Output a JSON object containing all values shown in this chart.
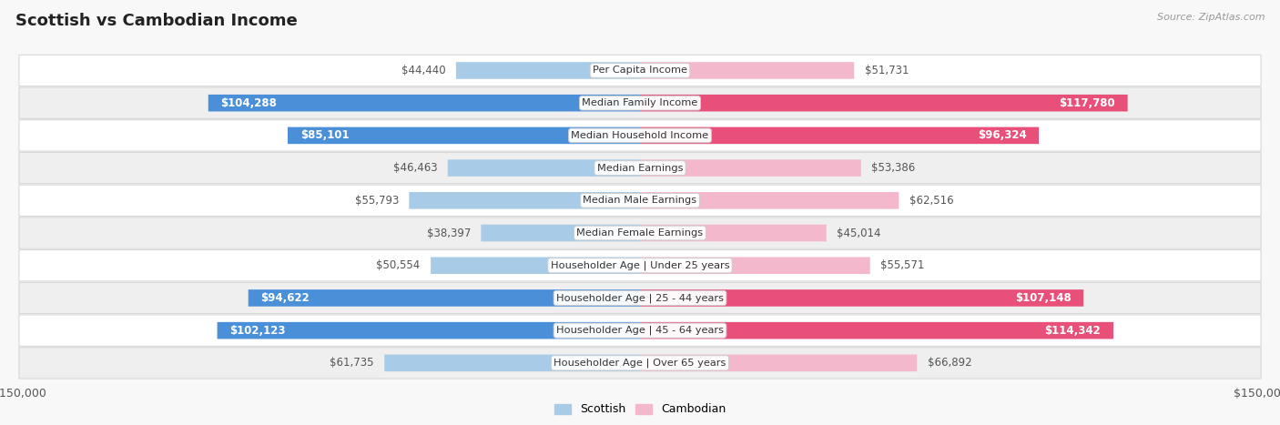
{
  "title": "Scottish vs Cambodian Income",
  "source": "Source: ZipAtlas.com",
  "categories": [
    "Per Capita Income",
    "Median Family Income",
    "Median Household Income",
    "Median Earnings",
    "Median Male Earnings",
    "Median Female Earnings",
    "Householder Age | Under 25 years",
    "Householder Age | 25 - 44 years",
    "Householder Age | 45 - 64 years",
    "Householder Age | Over 65 years"
  ],
  "scottish_values": [
    44440,
    104288,
    85101,
    46463,
    55793,
    38397,
    50554,
    94622,
    102123,
    61735
  ],
  "cambodian_values": [
    51731,
    117780,
    96324,
    53386,
    62516,
    45014,
    55571,
    107148,
    114342,
    66892
  ],
  "scottish_labels": [
    "$44,440",
    "$104,288",
    "$85,101",
    "$46,463",
    "$55,793",
    "$38,397",
    "$50,554",
    "$94,622",
    "$102,123",
    "$61,735"
  ],
  "cambodian_labels": [
    "$51,731",
    "$117,780",
    "$96,324",
    "$53,386",
    "$62,516",
    "$45,014",
    "$55,571",
    "$107,148",
    "$114,342",
    "$66,892"
  ],
  "scottish_color_light": "#a8cce8",
  "scottish_color_dark": "#4a90d9",
  "cambodian_color_light": "#f4b8cc",
  "cambodian_color_dark": "#e8507a",
  "large_threshold": 70000,
  "max_value": 150000,
  "bar_height": 0.52,
  "background_color": "#f8f8f8",
  "row_bg_color": "#f0f0f0",
  "label_fontsize": 8.5,
  "title_fontsize": 13,
  "axis_label_fontsize": 9,
  "legend_fontsize": 9
}
